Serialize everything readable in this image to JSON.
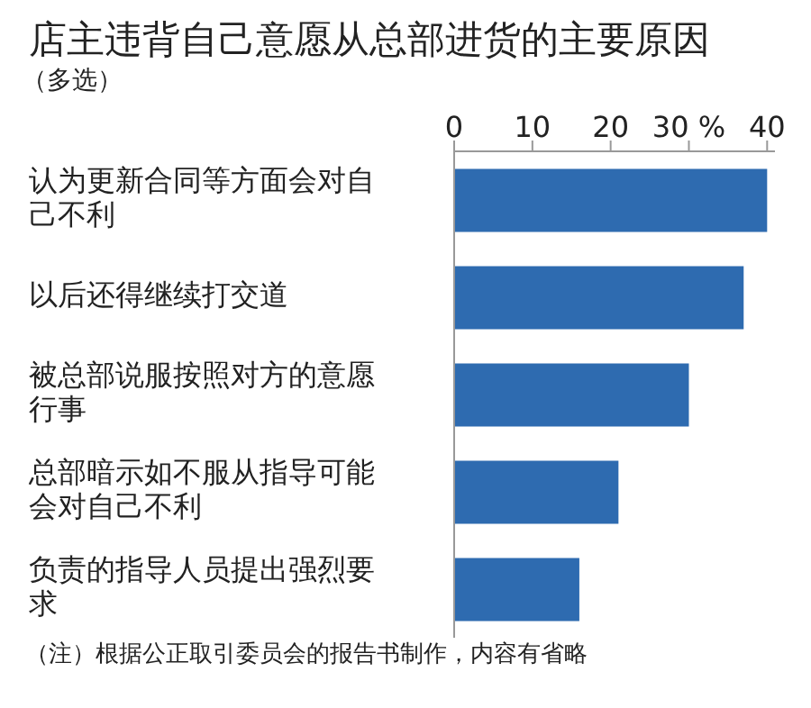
{
  "chart_data": {
    "type": "bar",
    "orientation": "horizontal",
    "title": "店主违背自己意愿从总部进货的主要原因",
    "subtitle": "（多选）",
    "categories": [
      "认为更新合同等方面会对自己不利",
      "以后还得继续打交道",
      "被总部说服按照对方的意愿行事",
      "总部暗示如不服从指导可能会对自己不利",
      "负责的指导人员提出强烈要求"
    ],
    "values": [
      40,
      37,
      30,
      21,
      16
    ],
    "color": "#2e6bb0",
    "xlim": [
      0,
      41
    ],
    "xticks": [
      0,
      10,
      20,
      {
        "value": 30,
        "label": "30 %"
      },
      40
    ],
    "annotations": [
      "（注）根据公正取引委员会的报告书制作，内容有省略"
    ]
  }
}
